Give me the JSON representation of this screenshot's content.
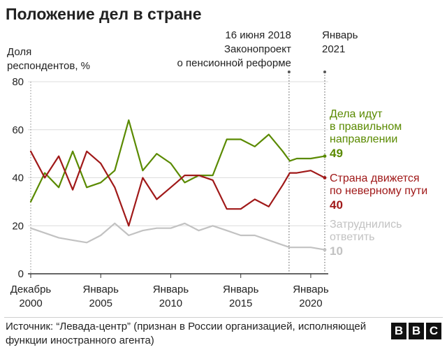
{
  "chart_data": {
    "type": "line",
    "title": "Положение дел в стране",
    "ylabel": [
      "Доля",
      "респондентов, %"
    ],
    "ylim": [
      0,
      80
    ],
    "yticks": [
      0,
      20,
      40,
      60,
      80
    ],
    "xlim": [
      1999.8,
      2021.25
    ],
    "xticks": [
      {
        "value": 2000,
        "lines": [
          "Декабрь",
          "2000"
        ]
      },
      {
        "value": 2005,
        "lines": [
          "Январь",
          "2005"
        ]
      },
      {
        "value": 2010,
        "lines": [
          "Январь",
          "2010"
        ]
      },
      {
        "value": 2015,
        "lines": [
          "Январь",
          "2015"
        ]
      },
      {
        "value": 2020,
        "lines": [
          "Январь",
          "2020"
        ]
      }
    ],
    "grid": "horizontal",
    "annotations": [
      {
        "x": 2018.45,
        "lines": [
          "16 июня 2018",
          "Законопроект",
          "о пенсионной реформе"
        ]
      },
      {
        "x": 2021.0,
        "lines": [
          "Январь",
          "2021"
        ]
      }
    ],
    "series": [
      {
        "name": [
          "Дела идут",
          "в правильном",
          "направлении"
        ],
        "end_label": "49",
        "color": "#5a8a00",
        "x": [
          2000,
          2001,
          2002,
          2003,
          2004,
          2005,
          2006,
          2007,
          2008,
          2009,
          2010,
          2011,
          2012,
          2013,
          2014,
          2015,
          2016,
          2017,
          2018,
          2018.5,
          2019,
          2020,
          2021
        ],
        "y": [
          30,
          42,
          36,
          51,
          36,
          38,
          43,
          64,
          43,
          50,
          46,
          38,
          41,
          41,
          56,
          56,
          53,
          58,
          51,
          47,
          48,
          48,
          49
        ]
      },
      {
        "name": [
          "Страна движется",
          "по неверному пути"
        ],
        "end_label": "40",
        "color": "#a01919",
        "x": [
          2000,
          2001,
          2002,
          2003,
          2004,
          2005,
          2006,
          2007,
          2008,
          2009,
          2010,
          2011,
          2012,
          2013,
          2014,
          2015,
          2016,
          2017,
          2018,
          2018.5,
          2019,
          2020,
          2021
        ],
        "y": [
          51,
          40,
          49,
          35,
          51,
          46,
          36,
          20,
          40,
          31,
          36,
          41,
          41,
          39,
          27,
          27,
          31,
          28,
          37,
          42,
          42,
          43,
          40
        ]
      },
      {
        "name": [
          "Затруднились",
          "ответить"
        ],
        "end_label": "10",
        "color": "#c2c2c2",
        "x": [
          2000,
          2001,
          2002,
          2003,
          2004,
          2005,
          2006,
          2007,
          2008,
          2009,
          2010,
          2011,
          2012,
          2013,
          2014,
          2015,
          2016,
          2017,
          2018,
          2018.5,
          2019,
          2020,
          2021
        ],
        "y": [
          19,
          17,
          15,
          14,
          13,
          16,
          21,
          16,
          18,
          19,
          19,
          21,
          18,
          20,
          18,
          16,
          16,
          14,
          12,
          11,
          11,
          11,
          10
        ]
      }
    ]
  },
  "footer": {
    "source": "Источник: “Левада-центр” (признан в России организацией, исполняющей функции иностранного агента)",
    "logo": [
      "B",
      "B",
      "C"
    ]
  }
}
